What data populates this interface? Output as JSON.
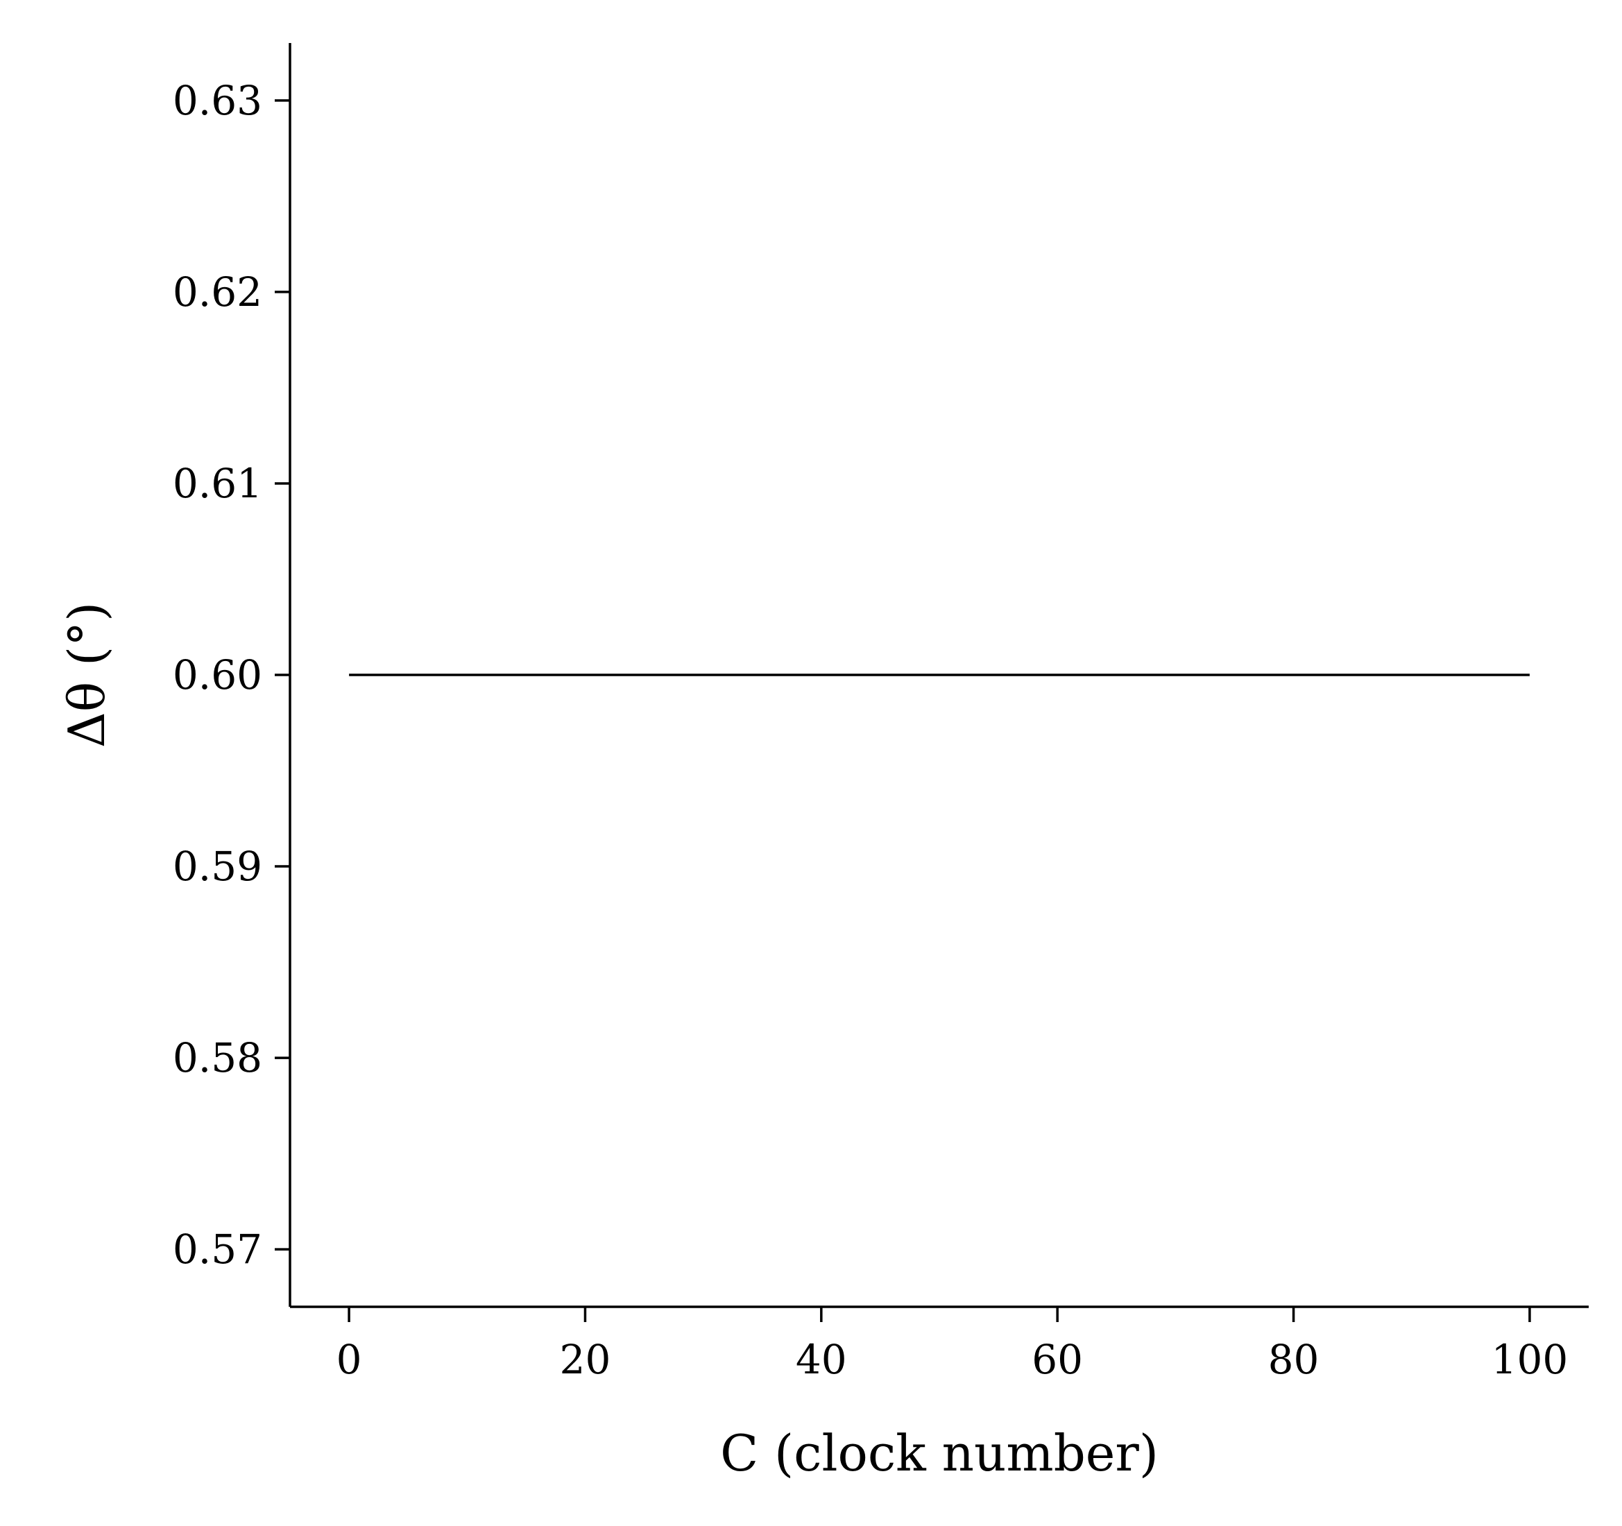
{
  "chart_data": {
    "type": "line",
    "title": "",
    "xlabel": "C (clock number)",
    "ylabel": "Δθ (°)",
    "xlim": [
      -5,
      105
    ],
    "ylim": [
      0.567,
      0.633
    ],
    "xticks": [
      0,
      20,
      40,
      60,
      80,
      100
    ],
    "xtick_labels": [
      "0",
      "20",
      "40",
      "60",
      "80",
      "100"
    ],
    "yticks": [
      0.57,
      0.58,
      0.59,
      0.6,
      0.61,
      0.62,
      0.63
    ],
    "ytick_labels": [
      "0.57",
      "0.58",
      "0.59",
      "0.60",
      "0.61",
      "0.62",
      "0.63"
    ],
    "grid": false,
    "legend": "none",
    "series": [
      {
        "color": "#000000",
        "x": [
          0,
          100
        ],
        "y": [
          0.6,
          0.6
        ]
      }
    ]
  }
}
